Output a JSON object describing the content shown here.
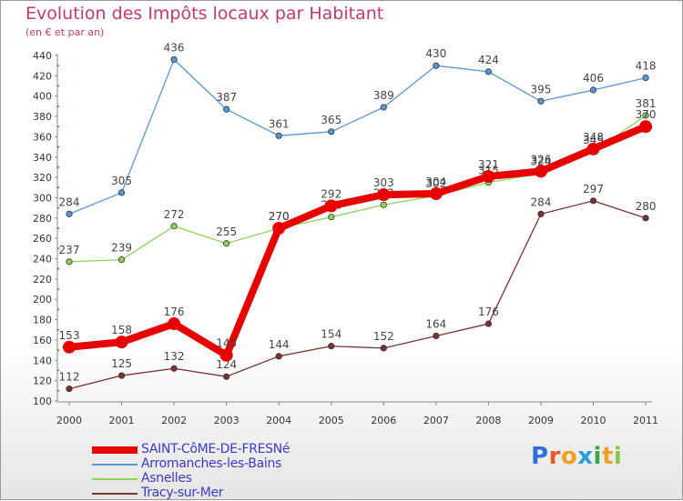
{
  "header": {
    "title": "Evolution des Impôts locaux par Habitant",
    "subtitle": "(en € et par an)"
  },
  "chart_data": {
    "type": "line",
    "title": "Evolution des Impôts locaux par Habitant",
    "subtitle": "(en € et par an)",
    "xlabel": "",
    "ylabel": "",
    "categories": [
      "2000",
      "2001",
      "2002",
      "2003",
      "2004",
      "2005",
      "2006",
      "2007",
      "2008",
      "2009",
      "2010",
      "2011"
    ],
    "y_ticks": [
      "100",
      "120",
      "140",
      "160",
      "180",
      "200",
      "220",
      "240",
      "260",
      "280",
      "300",
      "320",
      "340",
      "360",
      "380",
      "400",
      "420",
      "440"
    ],
    "ylim": [
      100,
      440
    ],
    "grid": false,
    "legend_position": "bottom-left",
    "series": [
      {
        "name": "Arromanches-les-Bains",
        "color": "#5a96d2",
        "values": [
          284,
          305,
          436,
          387,
          361,
          365,
          389,
          430,
          424,
          395,
          406,
          418
        ],
        "labels": [
          "284",
          "305",
          "436",
          "387",
          "361",
          "365",
          "389",
          "430",
          "424",
          "395",
          "406",
          "418"
        ]
      },
      {
        "name": "Asnelles",
        "color": "#8fd25a",
        "values": [
          237,
          239,
          272,
          255,
          270,
          281,
          293,
          302,
          315,
          324,
          345,
          381
        ],
        "labels": [
          "237",
          "239",
          "272",
          "255",
          "270",
          "281",
          "293",
          "302",
          "315",
          "324",
          "345",
          "381"
        ]
      },
      {
        "name": "Tracy-sur-Mer",
        "color": "#7a3232",
        "values": [
          112,
          125,
          132,
          124,
          144,
          154,
          152,
          164,
          176,
          284,
          297,
          280
        ],
        "labels": [
          "112",
          "125",
          "132",
          "124",
          "144",
          "154",
          "152",
          "164",
          "176",
          "284",
          "297",
          "280"
        ]
      },
      {
        "name": "SAINT-CôME-DE-FRESNé",
        "color": "#e60000",
        "values": [
          153,
          158,
          176,
          145,
          270,
          292,
          303,
          304,
          321,
          326,
          348,
          370
        ],
        "labels": [
          "153",
          "158",
          "176",
          "145",
          "270",
          "292",
          "303",
          "304",
          "321",
          "326",
          "348",
          "370"
        ]
      }
    ]
  },
  "legend": {
    "items": [
      {
        "label": "SAINT-CôME-DE-FRESNé",
        "color": "#e60000"
      },
      {
        "label": "Arromanches-les-Bains",
        "color": "#5a96d2"
      },
      {
        "label": "Asnelles",
        "color": "#8fd25a"
      },
      {
        "label": "Tracy-sur-Mer",
        "color": "#7a3232"
      }
    ]
  },
  "logo": {
    "text": "Proxiti",
    "letters": [
      "P",
      "r",
      "o",
      "x",
      "i",
      "t",
      "i"
    ],
    "colors": [
      "#2f6fd6",
      "#e8572a",
      "#f0a020",
      "#2aa0d8",
      "#3aa845",
      "#f0a020",
      "#8ac63e"
    ]
  }
}
